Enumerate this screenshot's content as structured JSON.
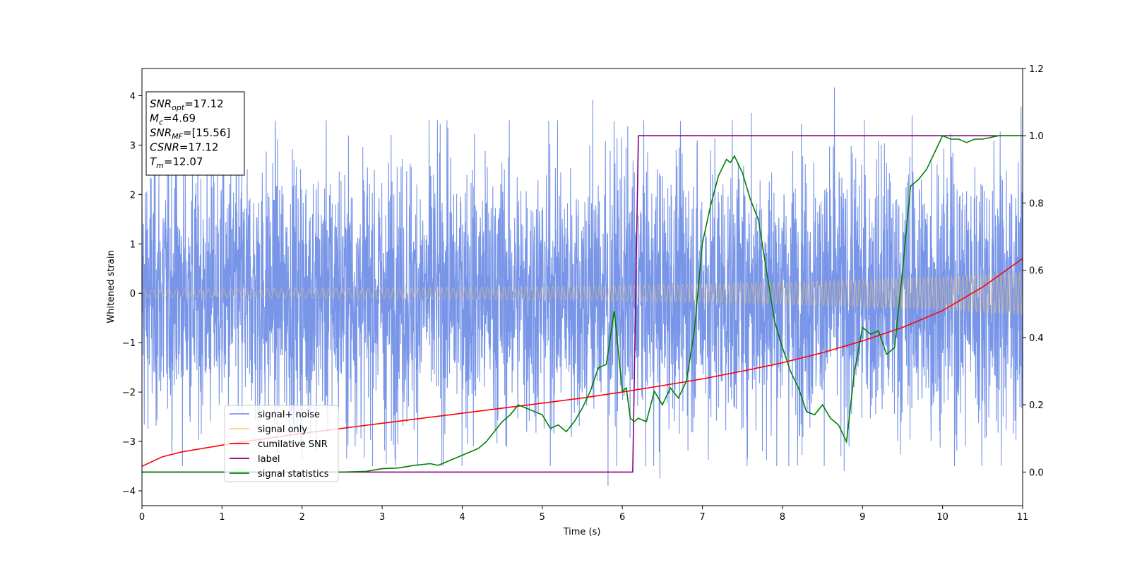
{
  "chart_data": {
    "type": "line",
    "title": "",
    "xlabel": "Time (s)",
    "ylabel": "Whitened strain",
    "xlim": [
      0,
      11
    ],
    "ylim": [
      -4.3,
      4.55
    ],
    "y2lim": [
      -0.1,
      1.2
    ],
    "x_ticks": [
      "0",
      "1",
      "2",
      "3",
      "4",
      "5",
      "6",
      "7",
      "8",
      "9",
      "10",
      "11"
    ],
    "y_ticks": [
      "−4",
      "−3",
      "−2",
      "−1",
      "0",
      "1",
      "2",
      "3",
      "4"
    ],
    "y2_ticks": [
      "0.0",
      "0.2",
      "0.4",
      "0.6",
      "0.8",
      "1.0",
      "1.2"
    ],
    "grid": false,
    "legend_position": "lower-left",
    "legend": [
      {
        "label": "signal+ noise",
        "color": "#6d8ce6"
      },
      {
        "label": "signal only",
        "color": "#f5c46b"
      },
      {
        "label": "cumilative SNR",
        "color": "#ff0000"
      },
      {
        "label": "label",
        "color": "#800080"
      },
      {
        "label": "signal statistics",
        "color": "#008000"
      }
    ],
    "annotation": {
      "lines": [
        {
          "base": "SNR",
          "sub": "opt",
          "value": "=17.12"
        },
        {
          "base": "M",
          "sub": "c",
          "value": "=4.69"
        },
        {
          "base": "SNR",
          "sub": "MF",
          "value": "=[15.56]"
        },
        {
          "base": "CSNR",
          "sub": "",
          "value": "=17.12"
        },
        {
          "base": "T",
          "sub": "m",
          "value": "=12.07"
        }
      ]
    },
    "series": [
      {
        "name": "signal+ noise",
        "axis": "left",
        "color": "#6d8ce6",
        "x_range": [
          0,
          11
        ],
        "band_envelope": {
          "x": [
            0,
            11
          ],
          "upper": [
            2.3,
            2.3
          ],
          "lower": [
            -2.3,
            -2.3
          ]
        },
        "spikes": [
          {
            "x": 5.63,
            "y": 3.92
          },
          {
            "x": 8.65,
            "y": 4.17
          },
          {
            "x": 10.98,
            "y": 3.78
          },
          {
            "x": 5.82,
            "y": -3.9
          },
          {
            "x": 6.47,
            "y": -3.75
          },
          {
            "x": 1.01,
            "y": 3.5
          },
          {
            "x": 0.42,
            "y": 3.3
          },
          {
            "x": 3.82,
            "y": 3.35
          },
          {
            "x": 7.61,
            "y": 3.65
          },
          {
            "x": 9.62,
            "y": 3.6
          },
          {
            "x": 7.8,
            "y": -3.38
          },
          {
            "x": 10.15,
            "y": -3.5
          },
          {
            "x": 2.0,
            "y": -3.35
          },
          {
            "x": 3.05,
            "y": -3.45
          },
          {
            "x": 8.77,
            "y": -3.6
          }
        ]
      },
      {
        "name": "signal only",
        "axis": "left",
        "color": "#f5c46b",
        "envelope": {
          "x": [
            0,
            2,
            4,
            6,
            8,
            10,
            11
          ],
          "amplitude": [
            0.08,
            0.1,
            0.12,
            0.15,
            0.22,
            0.33,
            0.43
          ]
        }
      },
      {
        "name": "cumilative SNR",
        "axis": "right",
        "color": "#ff0000",
        "x": [
          0,
          0.25,
          0.5,
          1,
          1.5,
          2,
          2.5,
          3,
          3.5,
          4,
          4.5,
          5,
          5.5,
          6,
          6.5,
          7,
          7.5,
          8,
          8.5,
          9,
          9.5,
          10,
          10.5,
          11
        ],
        "y": [
          0.017,
          0.045,
          0.06,
          0.08,
          0.098,
          0.115,
          0.13,
          0.145,
          0.16,
          0.175,
          0.19,
          0.205,
          0.22,
          0.238,
          0.257,
          0.277,
          0.3,
          0.325,
          0.355,
          0.39,
          0.43,
          0.48,
          0.55,
          0.635
        ]
      },
      {
        "name": "label",
        "axis": "right",
        "color": "#800080",
        "x": [
          0,
          6.13,
          6.2,
          11
        ],
        "y": [
          0,
          0,
          1,
          1
        ]
      },
      {
        "name": "signal statistics",
        "axis": "right",
        "color": "#008000",
        "x": [
          0,
          0.5,
          1,
          1.5,
          2,
          2.5,
          2.8,
          3,
          3.2,
          3.4,
          3.6,
          3.7,
          3.8,
          4,
          4.2,
          4.3,
          4.4,
          4.5,
          4.6,
          4.7,
          4.8,
          4.9,
          5,
          5.1,
          5.2,
          5.3,
          5.4,
          5.5,
          5.6,
          5.7,
          5.8,
          5.9,
          6,
          6.05,
          6.1,
          6.15,
          6.2,
          6.3,
          6.4,
          6.5,
          6.6,
          6.7,
          6.8,
          6.9,
          7.0,
          7.1,
          7.2,
          7.3,
          7.35,
          7.4,
          7.5,
          7.6,
          7.7,
          7.8,
          7.9,
          8.0,
          8.1,
          8.2,
          8.3,
          8.4,
          8.5,
          8.6,
          8.7,
          8.8,
          8.9,
          9.0,
          9.1,
          9.2,
          9.3,
          9.4,
          9.5,
          9.6,
          9.7,
          9.8,
          9.9,
          10.0,
          10.1,
          10.2,
          10.3,
          10.4,
          10.5,
          10.7,
          11
        ],
        "y": [
          0.0,
          0.0,
          0.0,
          0.0,
          0.0,
          0.0,
          0.002,
          0.01,
          0.012,
          0.02,
          0.025,
          0.02,
          0.03,
          0.05,
          0.07,
          0.09,
          0.12,
          0.15,
          0.17,
          0.2,
          0.19,
          0.18,
          0.17,
          0.13,
          0.14,
          0.12,
          0.15,
          0.19,
          0.24,
          0.31,
          0.32,
          0.48,
          0.24,
          0.25,
          0.16,
          0.15,
          0.16,
          0.15,
          0.24,
          0.2,
          0.25,
          0.22,
          0.27,
          0.42,
          0.68,
          0.79,
          0.88,
          0.93,
          0.92,
          0.94,
          0.89,
          0.81,
          0.75,
          0.6,
          0.45,
          0.37,
          0.3,
          0.25,
          0.18,
          0.17,
          0.2,
          0.16,
          0.14,
          0.09,
          0.3,
          0.43,
          0.41,
          0.42,
          0.35,
          0.37,
          0.6,
          0.85,
          0.87,
          0.9,
          0.95,
          1.0,
          0.99,
          0.99,
          0.98,
          0.99,
          0.99,
          1.0,
          1.0
        ]
      }
    ]
  }
}
